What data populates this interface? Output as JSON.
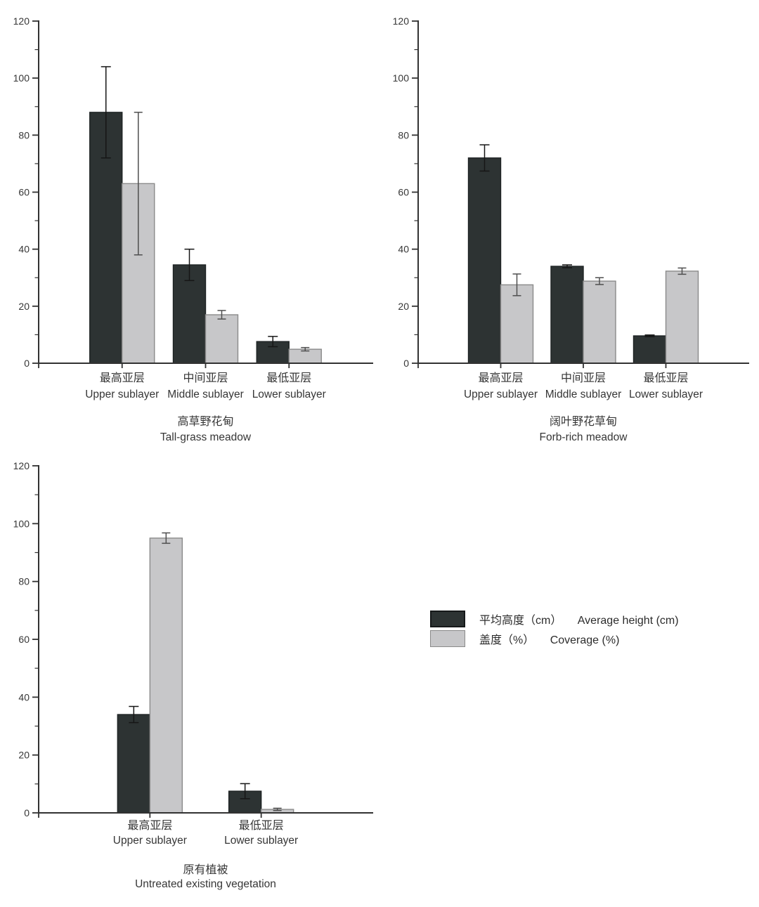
{
  "page": {
    "background": "#ffffff"
  },
  "colors": {
    "height_fill": "#2d3333",
    "height_stroke": "#1e2324",
    "coverage_fill": "#c7c7c9",
    "coverage_stroke": "#8a8a8a",
    "axis": "#323232",
    "text": "#363636",
    "error_dark": "#161616",
    "error_gray": "#4f4f4f"
  },
  "legend": {
    "items": [
      {
        "label_zh": "平均高度（cm）",
        "label_en": "Average height (cm)",
        "series_key": "height"
      },
      {
        "label_zh": "盖度（%）",
        "label_en": "Coverage (%)",
        "series_key": "coverage"
      }
    ]
  },
  "chart_data": [
    {
      "type": "bar",
      "panel": "top-left",
      "title_zh": "高草野花甸",
      "title_en": "Tall-grass meadow",
      "categories_zh": [
        "最高亚层",
        "中间亚层",
        "最低亚层"
      ],
      "categories_en": [
        "Upper sublayer",
        "Middle sublayer",
        "Lower sublayer"
      ],
      "ylim": [
        0,
        120
      ],
      "ytick_major": 20,
      "ytick_minor": 10,
      "grid": false,
      "series": [
        {
          "name": "Average height (cm)",
          "key": "height",
          "values": [
            88,
            34.5,
            7.6
          ],
          "errors": [
            16,
            5.5,
            1.8
          ]
        },
        {
          "name": "Coverage (%)",
          "key": "coverage",
          "values": [
            63,
            17,
            4.9
          ],
          "errors": [
            25,
            1.5,
            0.6
          ]
        }
      ]
    },
    {
      "type": "bar",
      "panel": "top-right",
      "title_zh": "阔叶野花草甸",
      "title_en": "Forb-rich meadow",
      "categories_zh": [
        "最高亚层",
        "中间亚层",
        "最低亚层"
      ],
      "categories_en": [
        "Upper sublayer",
        "Middle sublayer",
        "Lower sublayer"
      ],
      "ylim": [
        0,
        120
      ],
      "ytick_major": 20,
      "ytick_minor": 10,
      "grid": false,
      "series": [
        {
          "name": "Average height (cm)",
          "key": "height",
          "values": [
            72,
            34,
            9.6
          ],
          "errors": [
            4.6,
            0.5,
            0.3
          ]
        },
        {
          "name": "Coverage (%)",
          "key": "coverage",
          "values": [
            27.5,
            28.8,
            32.3
          ],
          "errors": [
            3.8,
            1.2,
            1.1
          ]
        }
      ]
    },
    {
      "type": "bar",
      "panel": "bottom-left",
      "title_zh": "原有植被",
      "title_en": "Untreated existing vegetation",
      "categories_zh": [
        "最高亚层",
        "最低亚层"
      ],
      "categories_en": [
        "Upper sublayer",
        "Lower sublayer"
      ],
      "ylim": [
        0,
        120
      ],
      "ytick_major": 20,
      "ytick_minor": 10,
      "grid": false,
      "series": [
        {
          "name": "Average height (cm)",
          "key": "height",
          "values": [
            34,
            7.5
          ],
          "errors": [
            2.8,
            2.6
          ]
        },
        {
          "name": "Coverage (%)",
          "key": "coverage",
          "values": [
            95,
            1.2
          ],
          "errors": [
            1.8,
            0.4
          ]
        }
      ]
    }
  ]
}
